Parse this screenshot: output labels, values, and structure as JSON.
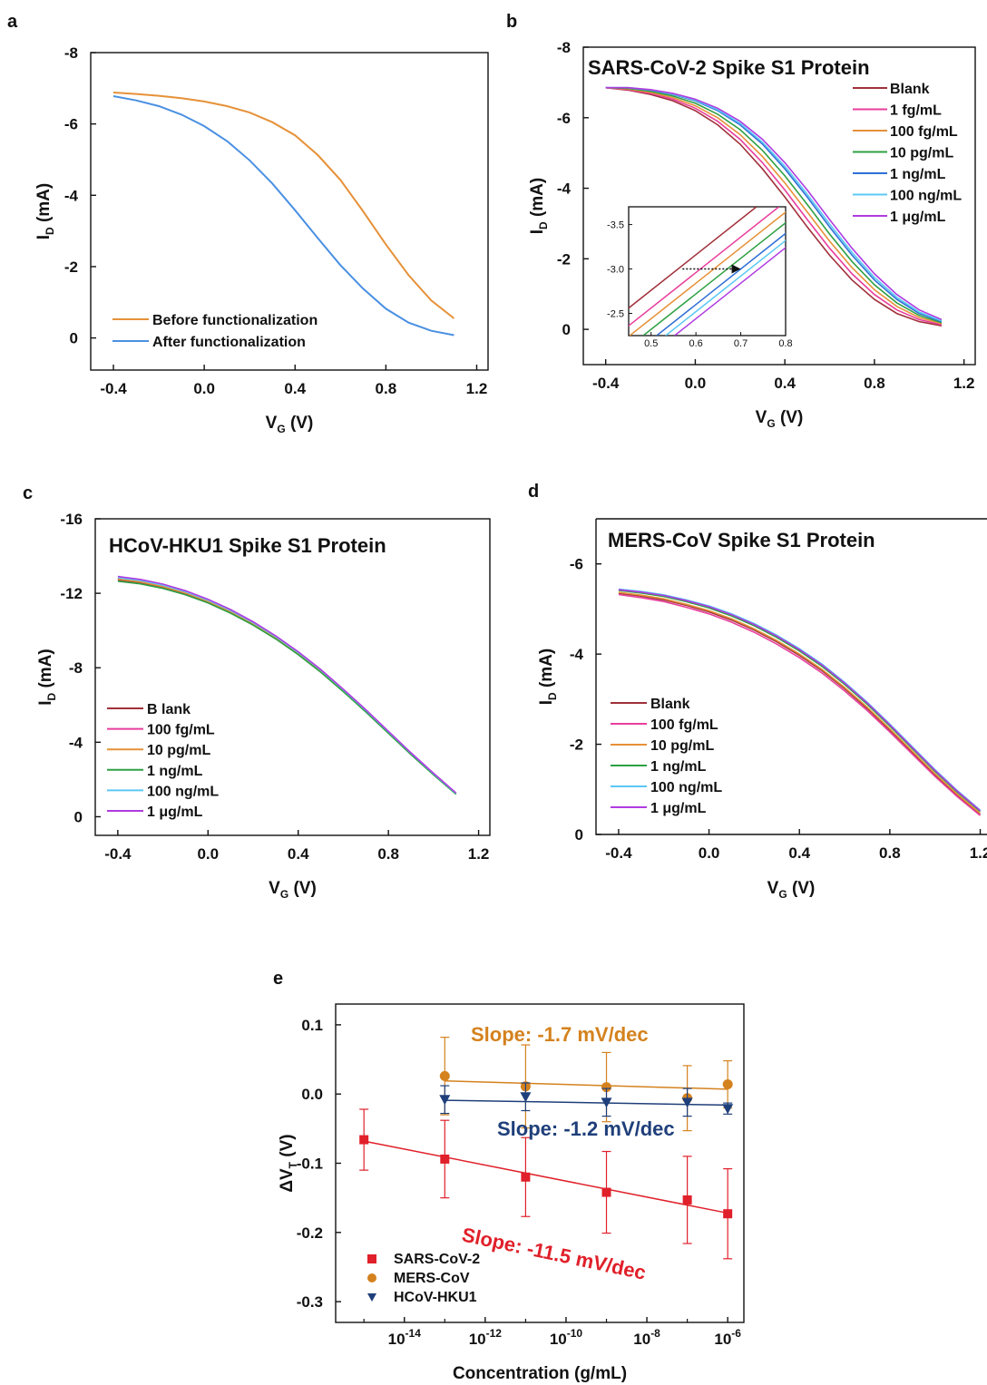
{
  "chart_data": [
    {
      "panel": "a",
      "type": "line",
      "title": "",
      "xlabel": "V_G (V)",
      "ylabel": "I_D (mA)",
      "xlim": [
        -0.5,
        1.25
      ],
      "ylim": [
        0.9,
        -8.0
      ],
      "xticks": [
        "-0.4",
        "0.0",
        "0.4",
        "0.8",
        "1.2"
      ],
      "yticks": [
        "-8",
        "-6",
        "-4",
        "-2",
        "0"
      ],
      "legend_position": "bottom-left",
      "series": [
        {
          "name": "Before functionalization",
          "color": "#E69138",
          "x": [
            -0.4,
            -0.3,
            -0.2,
            -0.1,
            0.0,
            0.1,
            0.2,
            0.3,
            0.4,
            0.5,
            0.6,
            0.7,
            0.8,
            0.9,
            1.0,
            1.1
          ],
          "y": [
            -6.88,
            -6.84,
            -6.79,
            -6.72,
            -6.63,
            -6.5,
            -6.32,
            -6.05,
            -5.68,
            -5.13,
            -4.43,
            -3.55,
            -2.62,
            -1.76,
            -1.05,
            -0.55
          ]
        },
        {
          "name": "After functionalization",
          "color": "#4A90E2",
          "x": [
            -0.4,
            -0.3,
            -0.2,
            -0.1,
            0.0,
            0.1,
            0.2,
            0.3,
            0.4,
            0.5,
            0.6,
            0.7,
            0.8,
            0.9,
            1.0,
            1.1
          ],
          "y": [
            -6.78,
            -6.66,
            -6.5,
            -6.26,
            -5.94,
            -5.52,
            -4.98,
            -4.33,
            -3.58,
            -2.8,
            -2.04,
            -1.38,
            -0.82,
            -0.43,
            -0.2,
            -0.08
          ]
        }
      ]
    },
    {
      "panel": "b",
      "type": "line",
      "title": "SARS-CoV-2 Spike S1 Protein",
      "xlabel": "V_G (V)",
      "ylabel": "I_D (mA)",
      "xlim": [
        -0.5,
        1.25
      ],
      "ylim": [
        1.0,
        -8.0
      ],
      "xticks": [
        "-0.4",
        "0.0",
        "0.4",
        "0.8",
        "1.2"
      ],
      "yticks": [
        "-8",
        "-6",
        "-4",
        "-2",
        "0"
      ],
      "legend_position": "top-right",
      "series": [
        {
          "name": "Blank",
          "color": "#A0303A",
          "shift": 0.0
        },
        {
          "name": "1 fg/mL",
          "color": "#E83E9C",
          "shift": 0.025
        },
        {
          "name": "100 fg/mL",
          "color": "#E69138",
          "shift": 0.05
        },
        {
          "name": "10 pg/mL",
          "color": "#2EA043",
          "shift": 0.075
        },
        {
          "name": "1 ng/mL",
          "color": "#2F6FD6",
          "shift": 0.1
        },
        {
          "name": "100 ng/mL",
          "color": "#5BC8F5",
          "shift": 0.11
        },
        {
          "name": "1 μg/mL",
          "color": "#B03BE0",
          "shift": 0.125
        }
      ],
      "base_curve": {
        "x": [
          -0.4,
          -0.3,
          -0.2,
          -0.1,
          0.0,
          0.1,
          0.2,
          0.3,
          0.4,
          0.5,
          0.6,
          0.7,
          0.8,
          0.9,
          1.0,
          1.1
        ],
        "y": [
          -6.85,
          -6.78,
          -6.66,
          -6.48,
          -6.2,
          -5.8,
          -5.25,
          -4.55,
          -3.75,
          -2.9,
          -2.1,
          -1.4,
          -0.85,
          -0.45,
          -0.22,
          -0.1
        ]
      },
      "inset": {
        "xlim": [
          0.45,
          0.8
        ],
        "ylim": [
          -3.7,
          -2.25
        ],
        "xticks": [
          "0.5",
          "0.6",
          "0.7",
          "0.8"
        ],
        "yticks": [
          "-3.5",
          "-3.0",
          "-2.5"
        ],
        "x_at_minus3": [
          0.56,
          0.61,
          0.64,
          0.67,
          0.7,
          0.72,
          0.74
        ],
        "slope_dy_dx": -4.0,
        "arrow_from_x": 0.57,
        "arrow_to_x": 0.7
      }
    },
    {
      "panel": "c",
      "type": "line",
      "title": "HCoV-HKU1 Spike S1 Protein",
      "xlabel": "V_G (V)",
      "ylabel": "I_D (mA)",
      "xlim": [
        -0.5,
        1.25
      ],
      "ylim": [
        1.0,
        -16.0
      ],
      "xticks": [
        "-0.4",
        "0.0",
        "0.4",
        "0.8",
        "1.2"
      ],
      "yticks": [
        "-16",
        "-12",
        "-8",
        "-4",
        "0"
      ],
      "legend_position": "bottom-left",
      "series": [
        {
          "name": "B lank",
          "color": "#A0303A",
          "offset": -0.08
        },
        {
          "name": "100 fg/mL",
          "color": "#E83E9C",
          "offset": 0.0
        },
        {
          "name": "10 pg/mL",
          "color": "#E69138",
          "offset": -0.04
        },
        {
          "name": "1 ng/mL",
          "color": "#2EA043",
          "offset": -0.15
        },
        {
          "name": "100 ng/mL",
          "color": "#5BC8F5",
          "offset": 0.04
        },
        {
          "name": "1 μg/mL",
          "color": "#B03BE0",
          "offset": 0.1
        }
      ],
      "base_curve": {
        "x": [
          -0.4,
          -0.3,
          -0.2,
          -0.1,
          0.0,
          0.1,
          0.2,
          0.3,
          0.4,
          0.5,
          0.6,
          0.7,
          0.8,
          0.9,
          1.0,
          1.1
        ],
        "y": [
          -12.8,
          -12.65,
          -12.4,
          -12.05,
          -11.6,
          -11.05,
          -10.4,
          -9.65,
          -8.8,
          -7.85,
          -6.8,
          -5.7,
          -4.55,
          -3.4,
          -2.3,
          -1.25
        ]
      }
    },
    {
      "panel": "d",
      "type": "line",
      "title": "MERS-CoV Spike S1 Protein",
      "xlabel": "V_G (V)",
      "ylabel": "I_D (mA)",
      "xlim": [
        -0.5,
        1.23
      ],
      "ylim": [
        0.0,
        -7.0
      ],
      "xticks": [
        "-0.4",
        "0.0",
        "0.4",
        "0.8",
        "1.2"
      ],
      "yticks": [
        "-6",
        "-4",
        "-2",
        "0"
      ],
      "legend_position": "bottom-left",
      "series": [
        {
          "name": "Blank",
          "color": "#A0303A",
          "offset": -0.05
        },
        {
          "name": "100 fg/mL",
          "color": "#E83E9C",
          "offset": -0.1
        },
        {
          "name": "10 pg/mL",
          "color": "#E69138",
          "offset": -0.02
        },
        {
          "name": "1 ng/mL",
          "color": "#2EA043",
          "offset": 0.05
        },
        {
          "name": "100 ng/mL",
          "color": "#5BC8F5",
          "offset": 0.1
        },
        {
          "name": "1 μg/mL",
          "color": "#B03BE0",
          "offset": 0.08
        }
      ],
      "base_curve": {
        "x": [
          -0.4,
          -0.3,
          -0.2,
          -0.1,
          0.0,
          0.1,
          0.2,
          0.3,
          0.4,
          0.5,
          0.6,
          0.7,
          0.8,
          0.9,
          1.0,
          1.1,
          1.2
        ],
        "y": [
          -5.38,
          -5.32,
          -5.24,
          -5.12,
          -4.98,
          -4.8,
          -4.58,
          -4.32,
          -4.02,
          -3.68,
          -3.28,
          -2.84,
          -2.36,
          -1.86,
          -1.36,
          -0.9,
          -0.48
        ]
      }
    },
    {
      "panel": "e",
      "type": "scatter",
      "title": "",
      "xlabel": "Concentration (g/mL)",
      "ylabel": "ΔV_T (V)",
      "xscale": "log",
      "xlim_log10": [
        -15.7,
        -5.6
      ],
      "ylim": [
        -0.33,
        0.13
      ],
      "xticks_exp": [
        "-14",
        "-12",
        "-10",
        "-8",
        "-6"
      ],
      "yticks": [
        "0.1",
        "0.0",
        "-0.1",
        "-0.2",
        "-0.3"
      ],
      "legend_position": "bottom-left",
      "series": [
        {
          "name": "SARS-CoV-2",
          "color": "#E0202A",
          "marker": "square",
          "x_log10": [
            -15,
            -13,
            -11,
            -9,
            -7,
            -6
          ],
          "y": [
            -0.066,
            -0.094,
            -0.12,
            -0.142,
            -0.153,
            -0.173
          ],
          "err": [
            0.044,
            0.056,
            0.057,
            0.059,
            0.063,
            0.065
          ],
          "fit": [
            -0.068,
            -0.172
          ]
        },
        {
          "name": "MERS-CoV",
          "color": "#D4821E",
          "marker": "circle",
          "x_log10": [
            -13,
            -11,
            -9,
            -7,
            -6
          ],
          "y": [
            0.026,
            0.011,
            0.01,
            -0.006,
            0.014
          ],
          "err": [
            0.056,
            0.06,
            0.05,
            0.047,
            0.034
          ],
          "fit": [
            0.019,
            0.007
          ]
        },
        {
          "name": "HCoV-HKU1",
          "color": "#1F3F7A",
          "marker": "triangle",
          "x_log10": [
            -13,
            -11,
            -9,
            -7,
            -6
          ],
          "y": [
            -0.008,
            -0.004,
            -0.012,
            -0.012,
            -0.021
          ],
          "err": [
            0.02,
            0.02,
            0.02,
            0.02,
            0.008
          ],
          "fit": [
            -0.009,
            -0.016
          ]
        }
      ],
      "annotations": [
        {
          "text": "Slope: -1.7 mV/dec",
          "color": "#D4821E"
        },
        {
          "text": "Slope: -1.2 mV/dec",
          "color": "#1F3F7A"
        },
        {
          "text": "Slope: -11.5 mV/dec",
          "color": "#E0202A"
        }
      ]
    }
  ]
}
